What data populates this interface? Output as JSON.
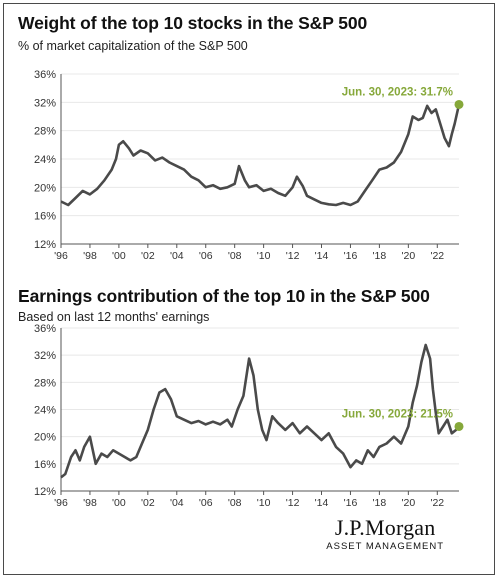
{
  "brand": {
    "name": "J.P.Morgan",
    "sub": "ASSET MANAGEMENT"
  },
  "colors": {
    "line": "#4a4a4a",
    "grid": "#e8e8e8",
    "accent": "#86a83a",
    "axis": "#555555"
  },
  "chart_data": [
    {
      "type": "line",
      "title": "Weight of the top 10 stocks in the S&P 500",
      "subtitle": "% of market capitalization of the S&P 500",
      "annotation": "Jun. 30, 2023: 31.7%",
      "ylim": [
        12,
        36
      ],
      "yticks": [
        12,
        16,
        20,
        24,
        28,
        32,
        36
      ],
      "ytick_labels": [
        "12%",
        "16%",
        "20%",
        "24%",
        "28%",
        "32%",
        "36%"
      ],
      "xlim": [
        1996,
        2023.5
      ],
      "xticks": [
        1996,
        1998,
        2000,
        2002,
        2004,
        2006,
        2008,
        2010,
        2012,
        2014,
        2016,
        2018,
        2020,
        2022
      ],
      "xtick_labels": [
        "'96",
        "'98",
        "'00",
        "'02",
        "'04",
        "'06",
        "'08",
        "'10",
        "'12",
        "'14",
        "'16",
        "'18",
        "'20",
        "'22"
      ],
      "grid": true,
      "series": [
        {
          "x": [
            1996.0,
            1996.5,
            1997.0,
            1997.5,
            1998.0,
            1998.5,
            1999.0,
            1999.5,
            1999.8,
            2000.0,
            2000.3,
            2000.7,
            2001.0,
            2001.5,
            2002.0,
            2002.5,
            2003.0,
            2003.5,
            2004.0,
            2004.5,
            2005.0,
            2005.5,
            2006.0,
            2006.5,
            2007.0,
            2007.5,
            2008.0,
            2008.3,
            2008.7,
            2009.0,
            2009.5,
            2010.0,
            2010.5,
            2011.0,
            2011.5,
            2012.0,
            2012.3,
            2012.7,
            2013.0,
            2013.5,
            2014.0,
            2014.5,
            2015.0,
            2015.5,
            2016.0,
            2016.5,
            2017.0,
            2017.5,
            2018.0,
            2018.5,
            2019.0,
            2019.5,
            2020.0,
            2020.3,
            2020.7,
            2021.0,
            2021.3,
            2021.6,
            2021.9,
            2022.2,
            2022.5,
            2022.8,
            2023.0,
            2023.2,
            2023.5
          ],
          "y": [
            18.0,
            17.5,
            18.5,
            19.5,
            19.0,
            19.8,
            21.0,
            22.5,
            24.0,
            26.0,
            26.5,
            25.5,
            24.5,
            25.2,
            24.8,
            23.8,
            24.2,
            23.5,
            23.0,
            22.5,
            21.5,
            21.0,
            20.0,
            20.3,
            19.8,
            20.0,
            20.5,
            23.0,
            21.0,
            20.0,
            20.3,
            19.5,
            19.8,
            19.2,
            18.8,
            20.0,
            21.5,
            20.2,
            18.8,
            18.3,
            17.8,
            17.6,
            17.5,
            17.8,
            17.5,
            18.0,
            19.5,
            21.0,
            22.5,
            22.8,
            23.5,
            25.0,
            27.5,
            30.0,
            29.5,
            29.8,
            31.5,
            30.5,
            31.0,
            29.0,
            27.0,
            25.8,
            27.5,
            29.0,
            31.7
          ]
        }
      ]
    },
    {
      "type": "line",
      "title": "Earnings contribution of the top 10 in the S&P 500",
      "subtitle": "Based on last 12 months' earnings",
      "annotation": "Jun. 30, 2023: 21.5%",
      "ylim": [
        12,
        36
      ],
      "yticks": [
        12,
        16,
        20,
        24,
        28,
        32,
        36
      ],
      "ytick_labels": [
        "12%",
        "16%",
        "20%",
        "24%",
        "28%",
        "32%",
        "36%"
      ],
      "xlim": [
        1996,
        2023.5
      ],
      "xticks": [
        1996,
        1998,
        2000,
        2002,
        2004,
        2006,
        2008,
        2010,
        2012,
        2014,
        2016,
        2018,
        2020,
        2022
      ],
      "xtick_labels": [
        "'96",
        "'98",
        "'00",
        "'02",
        "'04",
        "'06",
        "'08",
        "'10",
        "'12",
        "'14",
        "'16",
        "'18",
        "'20",
        "'22"
      ],
      "grid": true,
      "series": [
        {
          "x": [
            1996.0,
            1996.3,
            1996.7,
            1997.0,
            1997.3,
            1997.6,
            1998.0,
            1998.4,
            1998.8,
            1999.2,
            1999.6,
            2000.0,
            2000.4,
            2000.8,
            2001.2,
            2001.6,
            2002.0,
            2002.4,
            2002.8,
            2003.2,
            2003.6,
            2004.0,
            2004.5,
            2005.0,
            2005.5,
            2006.0,
            2006.5,
            2007.0,
            2007.5,
            2007.8,
            2008.2,
            2008.6,
            2009.0,
            2009.3,
            2009.6,
            2009.9,
            2010.2,
            2010.6,
            2011.0,
            2011.5,
            2012.0,
            2012.5,
            2013.0,
            2013.5,
            2014.0,
            2014.5,
            2015.0,
            2015.5,
            2016.0,
            2016.4,
            2016.8,
            2017.2,
            2017.6,
            2018.0,
            2018.5,
            2019.0,
            2019.5,
            2020.0,
            2020.3,
            2020.6,
            2020.9,
            2021.2,
            2021.5,
            2021.7,
            2021.9,
            2022.1,
            2022.4,
            2022.7,
            2023.0,
            2023.3,
            2023.5
          ],
          "y": [
            14.0,
            14.5,
            17.0,
            18.0,
            16.5,
            18.5,
            20.0,
            16.0,
            17.5,
            17.0,
            18.0,
            17.5,
            17.0,
            16.5,
            17.0,
            19.0,
            21.0,
            24.0,
            26.5,
            27.0,
            25.5,
            23.0,
            22.5,
            22.0,
            22.3,
            21.8,
            22.2,
            21.8,
            22.5,
            21.5,
            24.0,
            26.0,
            31.5,
            29.0,
            24.0,
            21.0,
            19.5,
            23.0,
            22.0,
            21.0,
            22.0,
            20.5,
            21.5,
            20.5,
            19.5,
            20.5,
            18.5,
            17.5,
            15.5,
            16.5,
            16.0,
            18.0,
            17.0,
            18.5,
            19.0,
            20.0,
            19.0,
            21.5,
            25.0,
            27.5,
            31.0,
            33.5,
            31.5,
            27.0,
            23.5,
            20.5,
            21.5,
            22.5,
            20.5,
            21.0,
            21.5
          ]
        }
      ]
    }
  ]
}
